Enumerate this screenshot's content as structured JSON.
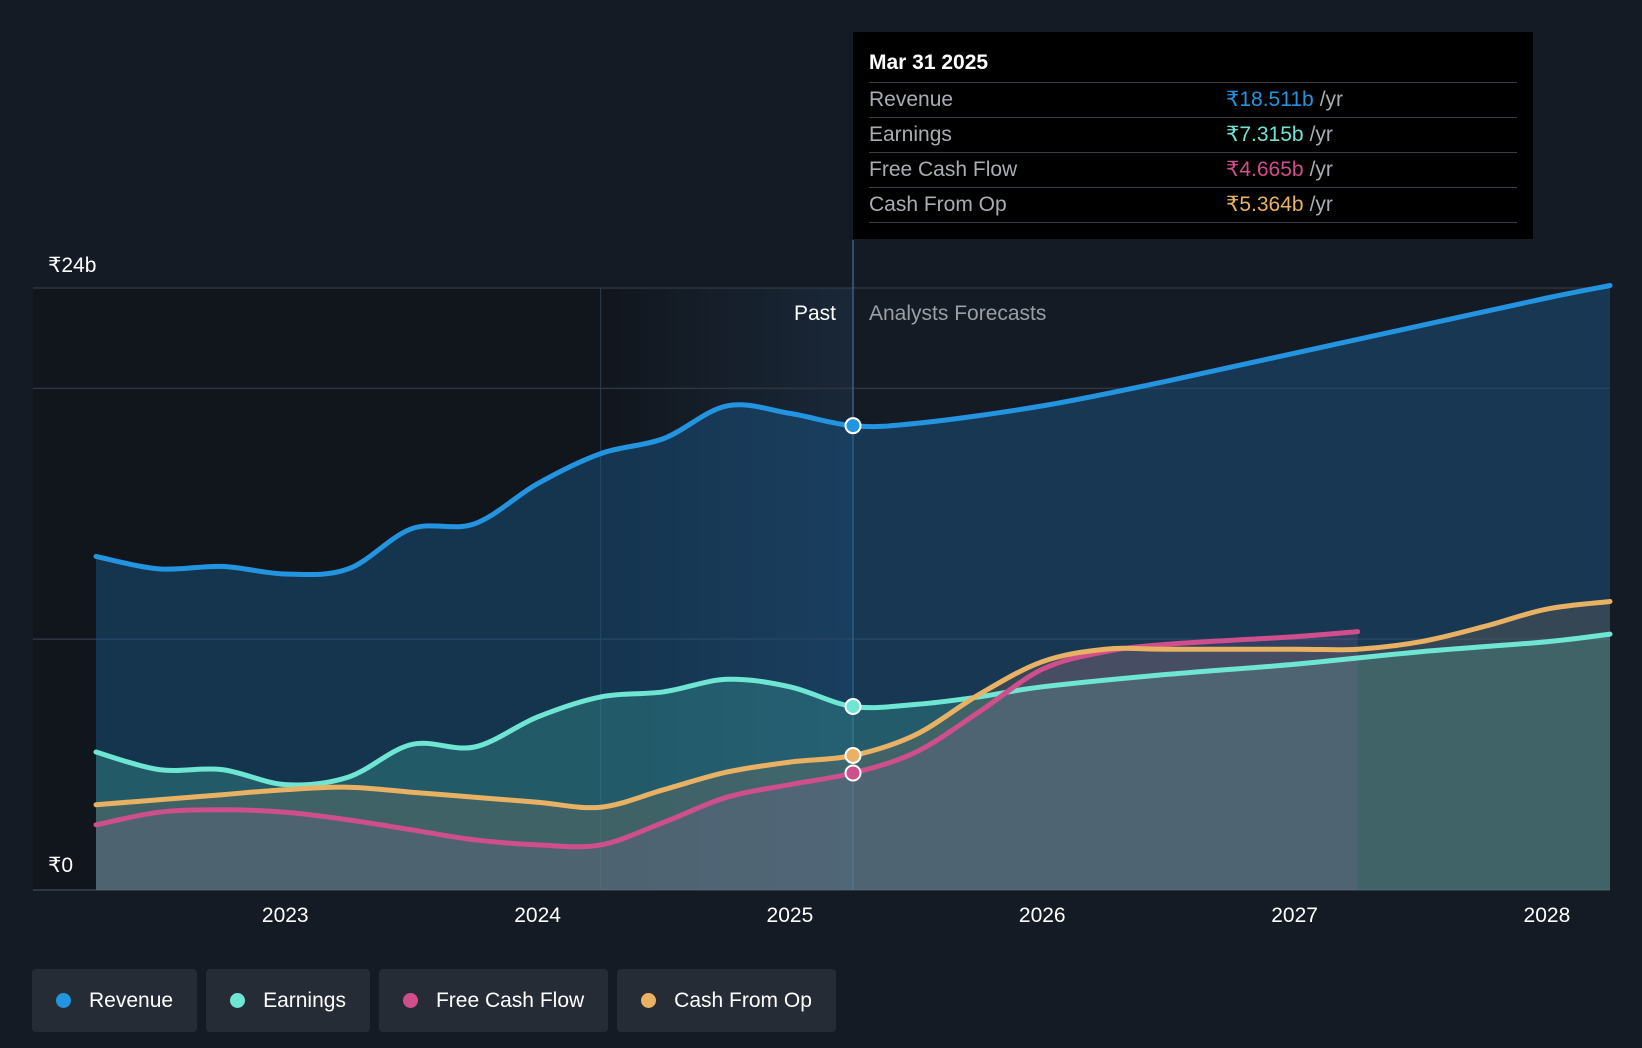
{
  "tooltip": {
    "date": "Mar 31 2025",
    "rows": [
      {
        "label": "Revenue",
        "value": "₹18.511b",
        "unit": "/yr",
        "color": "#2394df"
      },
      {
        "label": "Earnings",
        "value": "₹7.315b",
        "unit": "/yr",
        "color": "#6ee6d3"
      },
      {
        "label": "Free Cash Flow",
        "value": "₹4.665b",
        "unit": "/yr",
        "color": "#cf4e8c"
      },
      {
        "label": "Cash From Op",
        "value": "₹5.364b",
        "unit": "/yr",
        "color": "#e9b163"
      }
    ]
  },
  "legend": [
    {
      "label": "Revenue",
      "color": "#2394df"
    },
    {
      "label": "Earnings",
      "color": "#6ee6d3"
    },
    {
      "label": "Free Cash Flow",
      "color": "#cf4e8c"
    },
    {
      "label": "Cash From Op",
      "color": "#e9b163"
    }
  ],
  "chart_data": {
    "type": "line",
    "y_axis_labels": [
      "₹24b",
      "₹0"
    ],
    "ylim": [
      0,
      24
    ],
    "xlim": [
      2022.25,
      2028.25
    ],
    "x_ticks": [
      2023,
      2024,
      2025,
      2026,
      2027,
      2028
    ],
    "x_tick_labels": [
      "2023",
      "2024",
      "2025",
      "2026",
      "2027",
      "2028"
    ],
    "past_label": "Past",
    "forecast_label": "Analysts Forecasts",
    "past_end": 2025.25,
    "highlight_start": 2024.25,
    "series": [
      {
        "name": "Revenue",
        "color": "#2394df",
        "fill": true,
        "points": [
          [
            2022.25,
            13.3
          ],
          [
            2022.5,
            12.8
          ],
          [
            2022.75,
            12.9
          ],
          [
            2023.0,
            12.6
          ],
          [
            2023.25,
            12.8
          ],
          [
            2023.5,
            14.4
          ],
          [
            2023.75,
            14.6
          ],
          [
            2024.0,
            16.2
          ],
          [
            2024.25,
            17.4
          ],
          [
            2024.5,
            18.0
          ],
          [
            2024.75,
            19.3
          ],
          [
            2025.0,
            19.0
          ],
          [
            2025.25,
            18.511
          ],
          [
            2025.5,
            18.6
          ],
          [
            2026.0,
            19.3
          ],
          [
            2026.5,
            20.3
          ],
          [
            2027.0,
            21.4
          ],
          [
            2027.5,
            22.5
          ],
          [
            2028.0,
            23.6
          ],
          [
            2028.25,
            24.1
          ]
        ]
      },
      {
        "name": "Earnings",
        "color": "#6ee6d3",
        "fill": true,
        "points": [
          [
            2022.25,
            5.5
          ],
          [
            2022.5,
            4.8
          ],
          [
            2022.75,
            4.8
          ],
          [
            2023.0,
            4.2
          ],
          [
            2023.25,
            4.5
          ],
          [
            2023.5,
            5.8
          ],
          [
            2023.75,
            5.7
          ],
          [
            2024.0,
            6.9
          ],
          [
            2024.25,
            7.7
          ],
          [
            2024.5,
            7.9
          ],
          [
            2024.75,
            8.4
          ],
          [
            2025.0,
            8.1
          ],
          [
            2025.25,
            7.315
          ],
          [
            2025.5,
            7.4
          ],
          [
            2025.75,
            7.7
          ],
          [
            2026.0,
            8.1
          ],
          [
            2026.5,
            8.6
          ],
          [
            2027.0,
            9.0
          ],
          [
            2027.5,
            9.5
          ],
          [
            2028.0,
            9.9
          ],
          [
            2028.25,
            10.2
          ]
        ]
      },
      {
        "name": "Free Cash Flow",
        "color": "#cf4e8c",
        "fill": true,
        "points": [
          [
            2022.25,
            2.6
          ],
          [
            2022.5,
            3.1
          ],
          [
            2022.75,
            3.2
          ],
          [
            2023.0,
            3.1
          ],
          [
            2023.25,
            2.8
          ],
          [
            2023.5,
            2.4
          ],
          [
            2023.75,
            2.0
          ],
          [
            2024.0,
            1.8
          ],
          [
            2024.25,
            1.8
          ],
          [
            2024.5,
            2.7
          ],
          [
            2024.75,
            3.7
          ],
          [
            2025.0,
            4.2
          ],
          [
            2025.25,
            4.665
          ],
          [
            2025.5,
            5.5
          ],
          [
            2025.75,
            7.1
          ],
          [
            2026.0,
            8.8
          ],
          [
            2026.25,
            9.5
          ],
          [
            2026.5,
            9.8
          ],
          [
            2027.0,
            10.1
          ],
          [
            2027.25,
            10.3
          ]
        ]
      },
      {
        "name": "Cash From Op",
        "color": "#e9b163",
        "fill": true,
        "points": [
          [
            2022.25,
            3.4
          ],
          [
            2022.5,
            3.6
          ],
          [
            2022.75,
            3.8
          ],
          [
            2023.0,
            4.0
          ],
          [
            2023.25,
            4.1
          ],
          [
            2023.5,
            3.9
          ],
          [
            2023.75,
            3.7
          ],
          [
            2024.0,
            3.5
          ],
          [
            2024.25,
            3.3
          ],
          [
            2024.5,
            4.0
          ],
          [
            2024.75,
            4.7
          ],
          [
            2025.0,
            5.1
          ],
          [
            2025.25,
            5.364
          ],
          [
            2025.5,
            6.2
          ],
          [
            2025.75,
            7.8
          ],
          [
            2026.0,
            9.1
          ],
          [
            2026.25,
            9.6
          ],
          [
            2026.5,
            9.6
          ],
          [
            2027.0,
            9.6
          ],
          [
            2027.25,
            9.6
          ],
          [
            2027.5,
            9.9
          ],
          [
            2027.75,
            10.5
          ],
          [
            2028.0,
            11.2
          ],
          [
            2028.25,
            11.5
          ]
        ]
      }
    ],
    "markers": [
      {
        "series": "Revenue",
        "x": 2025.25,
        "y": 18.511
      },
      {
        "series": "Earnings",
        "x": 2025.25,
        "y": 7.315
      },
      {
        "series": "Cash From Op",
        "x": 2025.25,
        "y": 5.364
      },
      {
        "series": "Free Cash Flow",
        "x": 2025.25,
        "y": 4.665
      }
    ]
  }
}
